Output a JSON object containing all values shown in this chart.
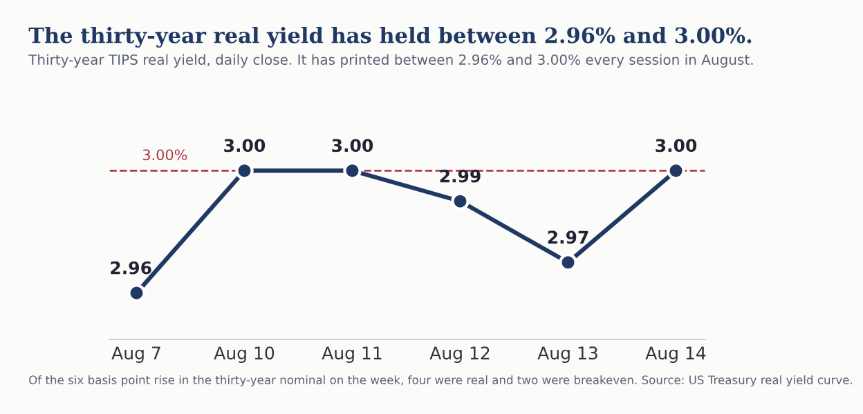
{
  "chart_data": {
    "type": "line",
    "title": "The thirty-year real yield has held between 2.96% and 3.00%.",
    "subtitle": "Thirty-year TIPS real yield, daily close. It has printed between 2.96% and 3.00% every session in August.",
    "categories": [
      "Aug 7",
      "Aug 10",
      "Aug 11",
      "Aug 12",
      "Aug 13",
      "Aug 14"
    ],
    "series": [
      {
        "color": "#1f3864",
        "values": [
          2.96,
          3.0,
          3.0,
          2.99,
          2.97,
          3.0
        ],
        "value_labels": [
          "2.96",
          "3.00",
          "3.00",
          "2.99",
          "2.97",
          "3.00"
        ]
      }
    ],
    "marker": "circle",
    "line_style": "solid",
    "grid": false,
    "legend": false,
    "tick_labels": "x",
    "ref_lines": [
      {
        "axis": "y",
        "value": 3.0,
        "label": "3.00%",
        "color": "#b03a48",
        "line_style": "dashed"
      }
    ],
    "annotations": [
      "Of the six basis point rise in the thirty-year nominal on the week, four were real and two were breakeven. Source: US Treasury real yield curve."
    ]
  }
}
